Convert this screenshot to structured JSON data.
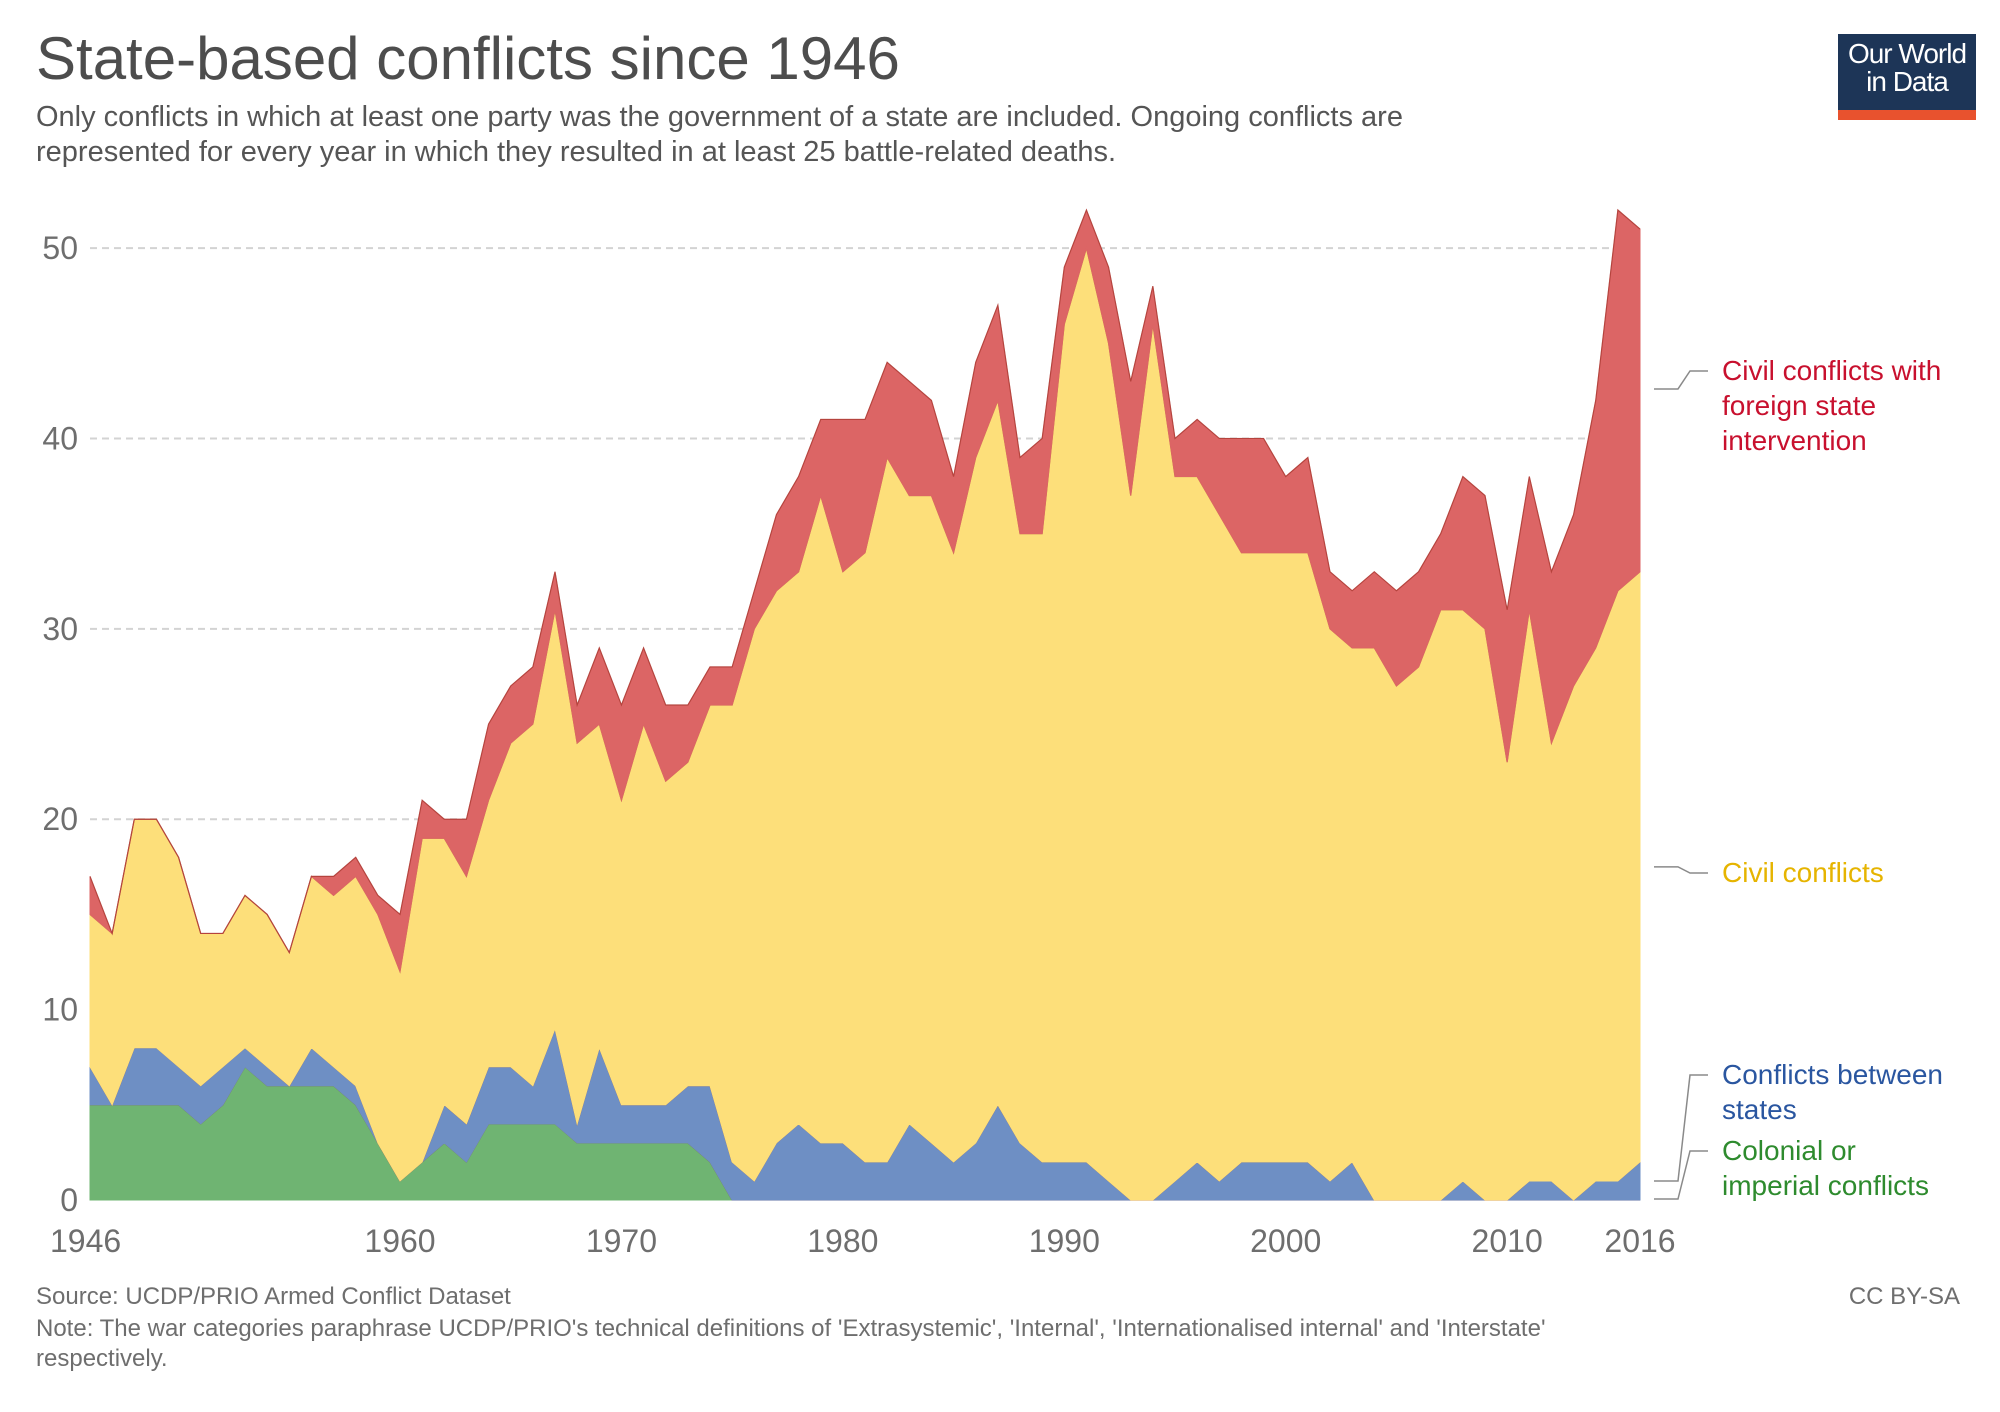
{
  "header": {
    "title": "State-based conflicts since 1946",
    "subtitle_lines": [
      "Only conflicts in which at least one party was the government of a state are included. Ongoing conflicts are",
      "represented for every year in which they resulted in at least 25 battle-related deaths."
    ]
  },
  "logo": {
    "line1": "Our World",
    "line2": "in Data",
    "background": "#1d3557",
    "accent": "#e8522e"
  },
  "footer": {
    "source": "Source: UCDP/PRIO Armed Conflict Dataset",
    "license": "CC BY-SA",
    "note_lines": [
      "Note: The war categories paraphrase UCDP/PRIO's technical definitions of 'Extrasystemic', 'Internal', 'Internationalised internal' and 'Interstate'",
      "respectively."
    ]
  },
  "chart_data": {
    "type": "area",
    "stacked": true,
    "grid": "horizontal dashed",
    "ylim": [
      0,
      52
    ],
    "y_ticks": [
      0,
      10,
      20,
      30,
      40,
      50
    ],
    "x_ticks": [
      1946,
      1960,
      1970,
      1980,
      1990,
      2000,
      2010,
      2016
    ],
    "x": [
      1946,
      1947,
      1948,
      1949,
      1950,
      1951,
      1952,
      1953,
      1954,
      1955,
      1956,
      1957,
      1958,
      1959,
      1960,
      1961,
      1962,
      1963,
      1964,
      1965,
      1966,
      1967,
      1968,
      1969,
      1970,
      1971,
      1972,
      1973,
      1974,
      1975,
      1976,
      1977,
      1978,
      1979,
      1980,
      1981,
      1982,
      1983,
      1984,
      1985,
      1986,
      1987,
      1988,
      1989,
      1990,
      1991,
      1992,
      1993,
      1994,
      1995,
      1996,
      1997,
      1998,
      1999,
      2000,
      2001,
      2002,
      2003,
      2004,
      2005,
      2006,
      2007,
      2008,
      2009,
      2010,
      2011,
      2012,
      2013,
      2014,
      2015,
      2016
    ],
    "series": [
      {
        "name": "Colonial or imperial conflicts",
        "color": "#6fb472",
        "label_color": "#2e8b2e",
        "values": [
          5,
          5,
          5,
          5,
          5,
          4,
          5,
          7,
          6,
          6,
          6,
          6,
          5,
          3,
          1,
          2,
          3,
          2,
          4,
          4,
          4,
          4,
          3,
          3,
          3,
          3,
          3,
          3,
          2,
          0,
          0,
          0,
          0,
          0,
          0,
          0,
          0,
          0,
          0,
          0,
          0,
          0,
          0,
          0,
          0,
          0,
          0,
          0,
          0,
          0,
          0,
          0,
          0,
          0,
          0,
          0,
          0,
          0,
          0,
          0,
          0,
          0,
          0,
          0,
          0,
          0,
          0,
          0,
          0,
          0,
          0
        ]
      },
      {
        "name": "Conflicts between states",
        "color": "#6e8fc4",
        "label_color": "#2a56a0",
        "values": [
          2,
          0,
          3,
          3,
          2,
          2,
          2,
          1,
          1,
          0,
          2,
          1,
          1,
          0,
          0,
          0,
          2,
          2,
          3,
          3,
          2,
          5,
          1,
          5,
          2,
          2,
          2,
          3,
          4,
          2,
          1,
          3,
          4,
          3,
          3,
          2,
          2,
          4,
          3,
          2,
          3,
          5,
          3,
          2,
          2,
          2,
          1,
          0,
          0,
          1,
          2,
          1,
          2,
          2,
          2,
          2,
          1,
          2,
          0,
          0,
          0,
          0,
          1,
          0,
          0,
          1,
          1,
          0,
          1,
          1,
          2
        ]
      },
      {
        "name": "Civil conflicts",
        "color": "#fddf7a",
        "label_color": "#e6b400",
        "values": [
          8,
          9,
          12,
          12,
          11,
          8,
          7,
          8,
          8,
          7,
          9,
          9,
          11,
          12,
          11,
          17,
          14,
          13,
          14,
          17,
          19,
          22,
          20,
          17,
          16,
          20,
          17,
          17,
          20,
          24,
          29,
          29,
          29,
          34,
          30,
          32,
          37,
          33,
          34,
          32,
          36,
          37,
          32,
          33,
          44,
          48,
          44,
          37,
          46,
          37,
          36,
          35,
          32,
          32,
          32,
          32,
          29,
          27,
          29,
          27,
          28,
          31,
          30,
          30,
          23,
          30,
          23,
          27,
          28,
          31,
          31
        ]
      },
      {
        "name": "Civil conflicts with foreign state intervention",
        "color": "#dc6565",
        "label_color": "#c8102e",
        "values": [
          2,
          0,
          0,
          0,
          0,
          0,
          0,
          0,
          0,
          0,
          0,
          1,
          1,
          1,
          3,
          2,
          1,
          3,
          4,
          3,
          3,
          2,
          2,
          4,
          5,
          4,
          4,
          3,
          2,
          2,
          2,
          4,
          5,
          4,
          8,
          7,
          5,
          6,
          5,
          4,
          5,
          5,
          4,
          5,
          3,
          2,
          4,
          6,
          2,
          2,
          3,
          4,
          6,
          6,
          4,
          5,
          3,
          3,
          4,
          5,
          5,
          4,
          7,
          7,
          8,
          7,
          9,
          9,
          13,
          20,
          18
        ]
      }
    ],
    "legend_placement": "right, aligned to series end"
  }
}
